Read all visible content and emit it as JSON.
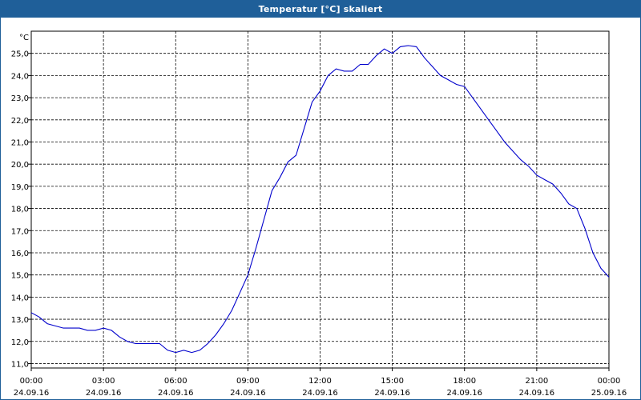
{
  "window": {
    "title": "Temperatur [°C] skaliert"
  },
  "colors": {
    "titlebar": "#1f5f99",
    "series": "#0000cc",
    "grid": "#000000"
  },
  "chart_data": {
    "type": "line",
    "title": "Temperatur [°C] skaliert",
    "ylabel": "°C",
    "xlabel": "",
    "ylim": [
      10.8,
      26.0
    ],
    "xlim": [
      "24.09.16 00:00",
      "25.09.16 00:00"
    ],
    "grid": true,
    "y_ticks": [
      "11,0",
      "12,0",
      "13,0",
      "14,0",
      "15,0",
      "16,0",
      "17,0",
      "18,0",
      "19,0",
      "20,0",
      "21,0",
      "22,0",
      "23,0",
      "24,0",
      "25,0"
    ],
    "y_tick_values": [
      11,
      12,
      13,
      14,
      15,
      16,
      17,
      18,
      19,
      20,
      21,
      22,
      23,
      24,
      25
    ],
    "x_ticks": [
      {
        "time": "00:00",
        "date": "24.09.16"
      },
      {
        "time": "03:00",
        "date": "24.09.16"
      },
      {
        "time": "06:00",
        "date": "24.09.16"
      },
      {
        "time": "09:00",
        "date": "24.09.16"
      },
      {
        "time": "12:00",
        "date": "24.09.16"
      },
      {
        "time": "15:00",
        "date": "24.09.16"
      },
      {
        "time": "18:00",
        "date": "24.09.16"
      },
      {
        "time": "21:00",
        "date": "24.09.16"
      },
      {
        "time": "00:00",
        "date": "25.09.16"
      }
    ],
    "series": [
      {
        "x": [
          "00:00",
          "00:20",
          "00:40",
          "01:00",
          "01:20",
          "01:40",
          "02:00",
          "02:20",
          "02:40",
          "03:00",
          "03:20",
          "03:40",
          "04:00",
          "04:20",
          "04:40",
          "05:00",
          "05:20",
          "05:40",
          "06:00",
          "06:20",
          "06:40",
          "07:00",
          "07:20",
          "07:40",
          "08:00",
          "08:20",
          "08:40",
          "09:00",
          "09:20",
          "09:40",
          "10:00",
          "10:20",
          "10:40",
          "11:00",
          "11:20",
          "11:40",
          "12:00",
          "12:20",
          "12:40",
          "13:00",
          "13:20",
          "13:40",
          "14:00",
          "14:20",
          "14:40",
          "15:00",
          "15:20",
          "15:40",
          "16:00",
          "16:20",
          "16:40",
          "17:00",
          "17:20",
          "17:40",
          "18:00",
          "18:20",
          "18:40",
          "19:00",
          "19:20",
          "19:40",
          "20:00",
          "20:20",
          "20:40",
          "21:00",
          "21:20",
          "21:40",
          "22:00",
          "22:20",
          "22:40",
          "23:00",
          "23:20",
          "23:40",
          "24:00"
        ],
        "values": [
          13.3,
          13.1,
          12.8,
          12.7,
          12.6,
          12.6,
          12.6,
          12.5,
          12.5,
          12.6,
          12.5,
          12.2,
          12.0,
          11.9,
          11.9,
          11.9,
          11.9,
          11.6,
          11.5,
          11.6,
          11.5,
          11.6,
          11.9,
          12.3,
          12.8,
          13.4,
          14.2,
          15.0,
          16.2,
          17.5,
          18.8,
          19.4,
          20.1,
          20.4,
          21.6,
          22.8,
          23.3,
          24.0,
          24.3,
          24.2,
          24.2,
          24.5,
          24.5,
          24.9,
          25.2,
          25.0,
          25.3,
          25.35,
          25.3,
          24.8,
          24.4,
          24.0,
          23.8,
          23.6,
          23.5,
          23.0,
          22.5,
          22.0,
          21.5,
          21.0,
          20.6,
          20.2,
          19.9,
          19.5,
          19.3,
          19.1,
          18.7,
          18.2,
          18.0,
          17.1,
          16.0,
          15.3,
          14.9
        ]
      }
    ]
  }
}
